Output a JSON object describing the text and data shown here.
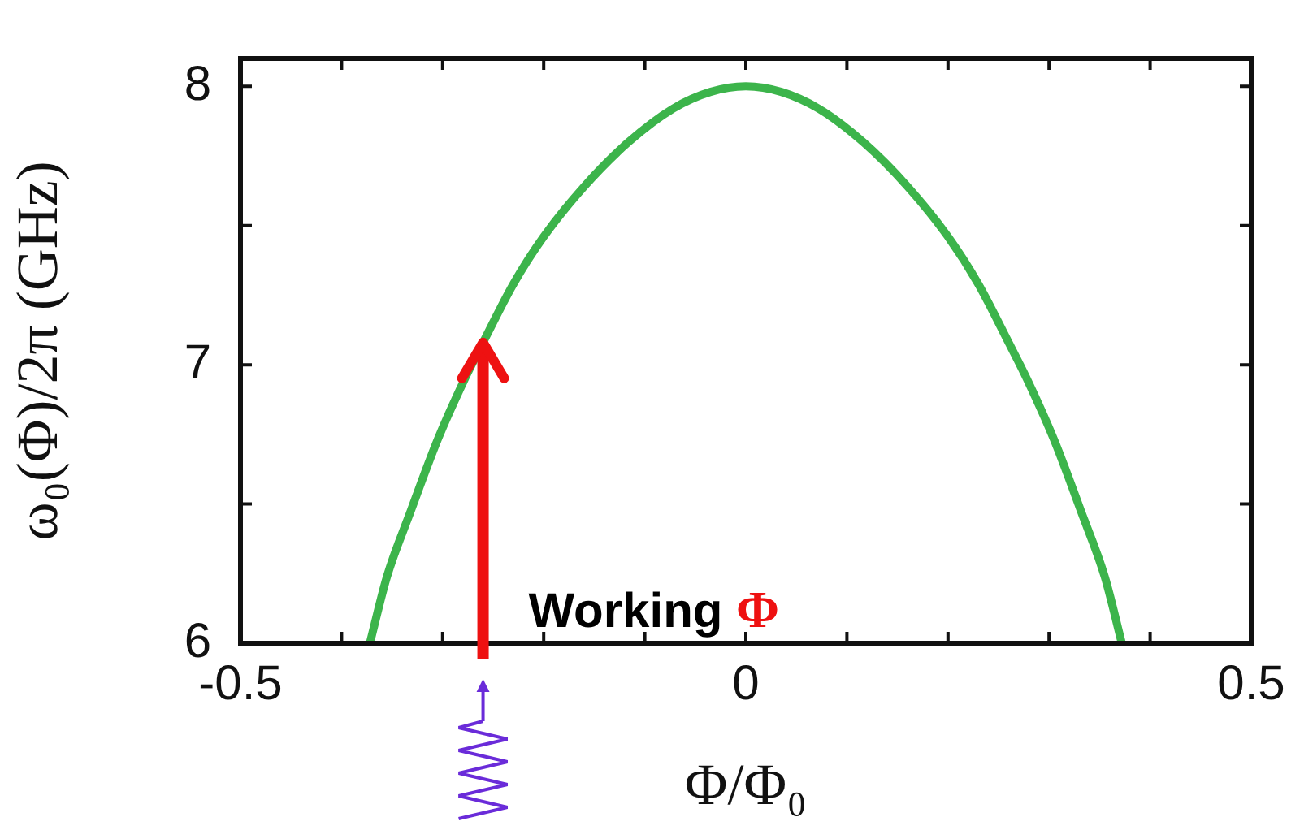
{
  "chart_data": {
    "type": "line",
    "xlabel": "Φ/Φ₀",
    "ylabel": "ω₀(Φ)/2π (GHz)",
    "series": [
      {
        "color": "#3cb44b",
        "x": [
          -0.372,
          -0.355,
          -0.332,
          -0.305,
          -0.278,
          -0.26,
          -0.23,
          -0.2,
          -0.16,
          -0.116,
          -0.072,
          -0.035,
          0,
          0.035,
          0.072,
          0.116,
          0.16,
          0.2,
          0.23,
          0.26,
          0.278,
          0.305,
          0.332,
          0.355,
          0.372
        ],
        "values": [
          6,
          6.24,
          6.47,
          6.73,
          6.95,
          7.08,
          7.29,
          7.46,
          7.64,
          7.8,
          7.92,
          7.98,
          8,
          7.98,
          7.92,
          7.8,
          7.64,
          7.46,
          7.29,
          7.08,
          6.95,
          6.73,
          6.47,
          6.24,
          6
        ]
      }
    ],
    "xlim": [
      -0.5,
      0.5
    ],
    "xticks": [
      -0.5,
      {
        "value": -0.4,
        "label": null
      },
      {
        "value": -0.3,
        "label": null
      },
      {
        "value": -0.2,
        "label": null
      },
      {
        "value": -0.1,
        "label": null
      },
      0,
      {
        "value": 0.1,
        "label": null
      },
      {
        "value": 0.2,
        "label": null
      },
      {
        "value": 0.3,
        "label": null
      },
      {
        "value": 0.4,
        "label": null
      },
      0.5
    ],
    "ylim": [
      6,
      8.1
    ],
    "yticks": [
      6,
      {
        "value": 6.5,
        "label": null
      },
      7,
      {
        "value": 7.5,
        "label": null
      },
      8
    ],
    "annotations": [
      {
        "text": "Working Φ",
        "x": -0.26,
        "y": 7.08
      }
    ],
    "grid": false,
    "legend": false,
    "marker": "none",
    "line_style": "solid"
  }
}
